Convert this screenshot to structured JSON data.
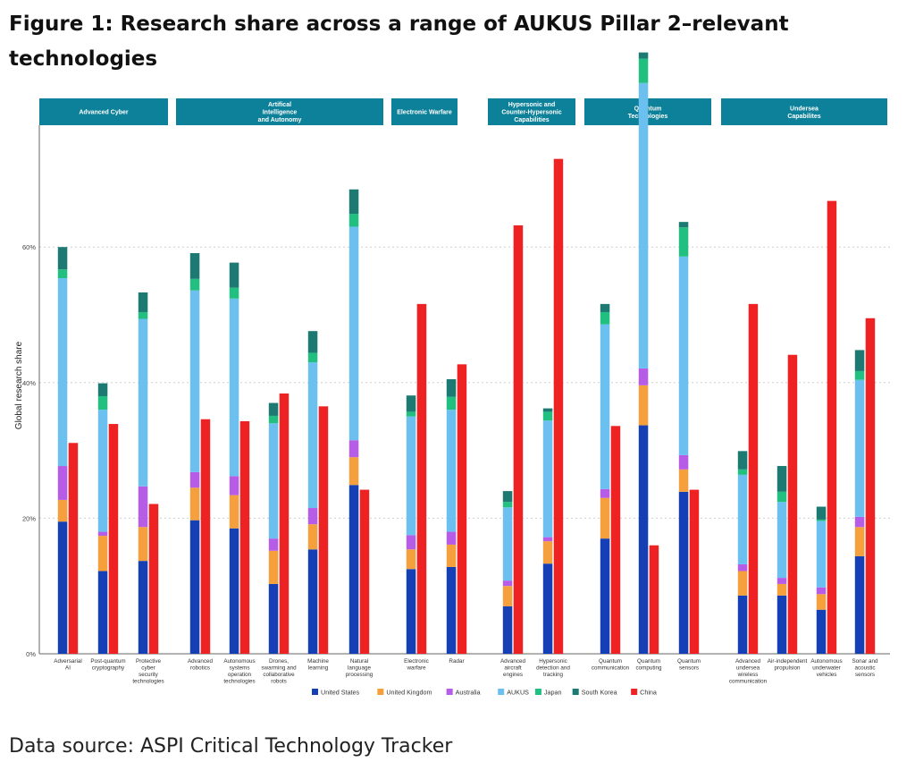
{
  "figure": {
    "title": "Figure 1: Research share across a range of AUKUS Pillar 2–relevant technologies",
    "source": "Data source: ASPI Critical Technology Tracker"
  },
  "chart_data": {
    "type": "bar",
    "ylabel": "Global research share",
    "ylim": [
      0,
      78
    ],
    "yticks": [
      0,
      20,
      40,
      60
    ],
    "ytick_labels": [
      "0%",
      "20%",
      "40%",
      "60%"
    ],
    "grid": "horizontal dashed",
    "legend_position": "bottom",
    "stack_series": [
      "United States",
      "United Kingdom",
      "Australia",
      "AUKUS",
      "Japan",
      "South Korea"
    ],
    "series_colors": {
      "United States": "#1540b5",
      "United Kingdom": "#f5a03c",
      "Australia": "#b65ce6",
      "AUKUS": "#6cc0f0",
      "Japan": "#22c080",
      "South Korea": "#1c7a72",
      "China": "#ee2222"
    },
    "legend": [
      "United States",
      "United Kingdom",
      "Australia",
      "AUKUS",
      "Japan",
      "South Korea",
      "China"
    ],
    "panel_color": "#0d8199",
    "panels": [
      {
        "title": "Advanced Cyber",
        "categories": [
          {
            "label": "Adversarial AI",
            "united_states": 19.5,
            "united_kingdom": 3.2,
            "australia": 5.0,
            "aukus": 27.7,
            "japan": 1.3,
            "south_korea": 3.3,
            "china": 31.1
          },
          {
            "label": "Post-quantum cryptography",
            "united_states": 12.2,
            "united_kingdom": 5.2,
            "australia": 0.6,
            "aukus": 18.0,
            "japan": 2.0,
            "south_korea": 1.9,
            "china": 33.9
          },
          {
            "label": "Protective cyber security technologies",
            "united_states": 13.7,
            "united_kingdom": 5.0,
            "australia": 6.0,
            "aukus": 24.7,
            "japan": 1.0,
            "south_korea": 2.9,
            "china": 22.1
          }
        ]
      },
      {
        "title": "Artifical Intelligence and Autonomy",
        "categories": [
          {
            "label": "Advanced robotics",
            "united_states": 19.7,
            "united_kingdom": 4.8,
            "australia": 2.3,
            "aukus": 26.8,
            "japan": 1.7,
            "south_korea": 3.8,
            "china": 34.6
          },
          {
            "label": "Autonomous systems operation technologies",
            "united_states": 18.5,
            "united_kingdom": 4.9,
            "australia": 2.8,
            "aukus": 26.2,
            "japan": 1.6,
            "south_korea": 3.7,
            "china": 34.3
          },
          {
            "label": "Drones, swarming and collaborative robots",
            "united_states": 10.3,
            "united_kingdom": 4.9,
            "australia": 1.8,
            "aukus": 17.0,
            "japan": 1.1,
            "south_korea": 1.9,
            "china": 38.4
          },
          {
            "label": "Machine learning",
            "united_states": 15.4,
            "united_kingdom": 3.7,
            "australia": 2.4,
            "aukus": 21.5,
            "japan": 1.4,
            "south_korea": 3.2,
            "china": 36.5
          },
          {
            "label": "Natural language processing",
            "united_states": 24.9,
            "united_kingdom": 4.1,
            "australia": 2.5,
            "aukus": 31.5,
            "japan": 1.9,
            "south_korea": 3.6,
            "china": 24.2
          }
        ]
      },
      {
        "title": "Electronic Warfare",
        "categories": [
          {
            "label": "Electronic warfare",
            "united_states": 12.5,
            "united_kingdom": 2.9,
            "australia": 2.1,
            "aukus": 17.5,
            "japan": 0.7,
            "south_korea": 2.4,
            "china": 51.6
          },
          {
            "label": "Radar",
            "united_states": 12.8,
            "united_kingdom": 3.3,
            "australia": 1.9,
            "aukus": 18.0,
            "japan": 1.9,
            "south_korea": 2.6,
            "china": 42.7
          }
        ]
      },
      {
        "title": "Hypersonic and Counter-Hypersonic Capabilities",
        "categories": [
          {
            "label": "Advanced aircraft engines",
            "united_states": 7.0,
            "united_kingdom": 3.0,
            "australia": 0.8,
            "aukus": 10.8,
            "japan": 0.8,
            "south_korea": 1.6,
            "china": 63.2
          },
          {
            "label": "Hypersonic detection and tracking",
            "united_states": 13.3,
            "united_kingdom": 3.3,
            "australia": 0.6,
            "aukus": 17.2,
            "japan": 1.3,
            "south_korea": 0.5,
            "china": 73.0
          }
        ]
      },
      {
        "title": "Quantum Technologies",
        "categories": [
          {
            "label": "Quantum communication",
            "united_states": 17.0,
            "united_kingdom": 6.0,
            "australia": 1.3,
            "aukus": 24.3,
            "japan": 1.8,
            "south_korea": 1.2,
            "china": 33.6
          },
          {
            "label": "Quantum computing",
            "united_states": 33.7,
            "united_kingdom": 5.9,
            "australia": 2.5,
            "aukus": 42.1,
            "japan": 3.6,
            "south_korea": 0.9,
            "china": 16.0
          },
          {
            "label": "Quantum sensors",
            "united_states": 23.9,
            "united_kingdom": 3.3,
            "australia": 2.1,
            "aukus": 29.3,
            "japan": 4.3,
            "south_korea": 0.8,
            "china": 24.2
          }
        ]
      },
      {
        "title": "Undersea Capabilites",
        "categories": [
          {
            "label": "Advanced undersea wireless communication",
            "united_states": 8.6,
            "united_kingdom": 3.6,
            "australia": 1.0,
            "aukus": 13.2,
            "japan": 0.8,
            "south_korea": 2.7,
            "china": 51.6
          },
          {
            "label": "Air-independent propulsion",
            "united_states": 8.6,
            "united_kingdom": 1.7,
            "australia": 0.9,
            "aukus": 11.2,
            "japan": 1.5,
            "south_korea": 3.8,
            "china": 44.1
          },
          {
            "label": "Autonomous underwater vehicles",
            "united_states": 6.5,
            "united_kingdom": 2.3,
            "australia": 1.0,
            "aukus": 9.8,
            "japan": 0.2,
            "south_korea": 1.9,
            "china": 66.8
          },
          {
            "label": "Sonar and acoustic sensors",
            "united_states": 14.4,
            "united_kingdom": 4.3,
            "australia": 1.5,
            "aukus": 20.2,
            "japan": 1.3,
            "south_korea": 3.1,
            "china": 49.5
          }
        ]
      }
    ]
  }
}
